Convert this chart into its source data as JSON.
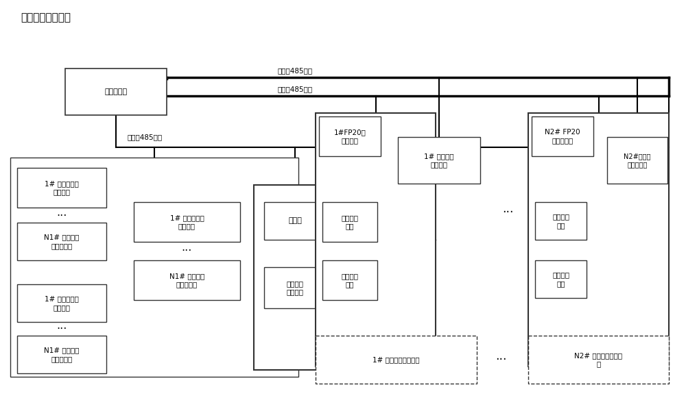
{
  "title": "消防水泵管理系统",
  "bg_color": "#ffffff",
  "box_color": "#ffffff",
  "box_edge": "#333333",
  "text_color": "#000000",
  "line_color": "#000000",
  "font_size": 7.5,
  "title_font_size": 11,
  "nodes": {
    "controller": {
      "label": "巡检控制器"
    },
    "bus3": {
      "label": "第三条485总线"
    },
    "bus2": {
      "label": "第二条485总线"
    },
    "bus1": {
      "label": "第一条485总线"
    },
    "flow1": {
      "label": "1# 水流量信号\n采集终端"
    },
    "flowN": {
      "label": "N1# 水流量信\n号采集终端"
    },
    "press1": {
      "label": "1# 水压力信号\n采集终端"
    },
    "pressN": {
      "label": "N1# 水压力信\n号采集终端"
    },
    "valve1": {
      "label": "1# 水阀门状态\n监控终端"
    },
    "valveN": {
      "label": "N1# 水阀门状\n态监控终端"
    },
    "vfd": {
      "label": "变频器"
    },
    "vfd_out": {
      "label": "变频电源\n输出端子"
    },
    "fp1": {
      "label": "1#FP20水\n泵控制器"
    },
    "pump_patrol1": {
      "label": "水泵巡检\n回路"
    },
    "pump_ctrl1": {
      "label": "水泵控制\n回路"
    },
    "elec1": {
      "label": "1# 电气回路\n巡检终端"
    },
    "fp2": {
      "label": "N2# FP20\n水泵控制器"
    },
    "pump_patrol2": {
      "label": "水泵巡检\n回路"
    },
    "pump_ctrl2": {
      "label": "水泵控制\n回路"
    },
    "elec2": {
      "label": "N2#电气回\n路巡检终端"
    },
    "ctrl_dev1": {
      "label": "1# 消防水泵控制设备"
    },
    "ctrl_dev2": {
      "label": "N2# 消防水泵控\n制设备"
    }
  }
}
